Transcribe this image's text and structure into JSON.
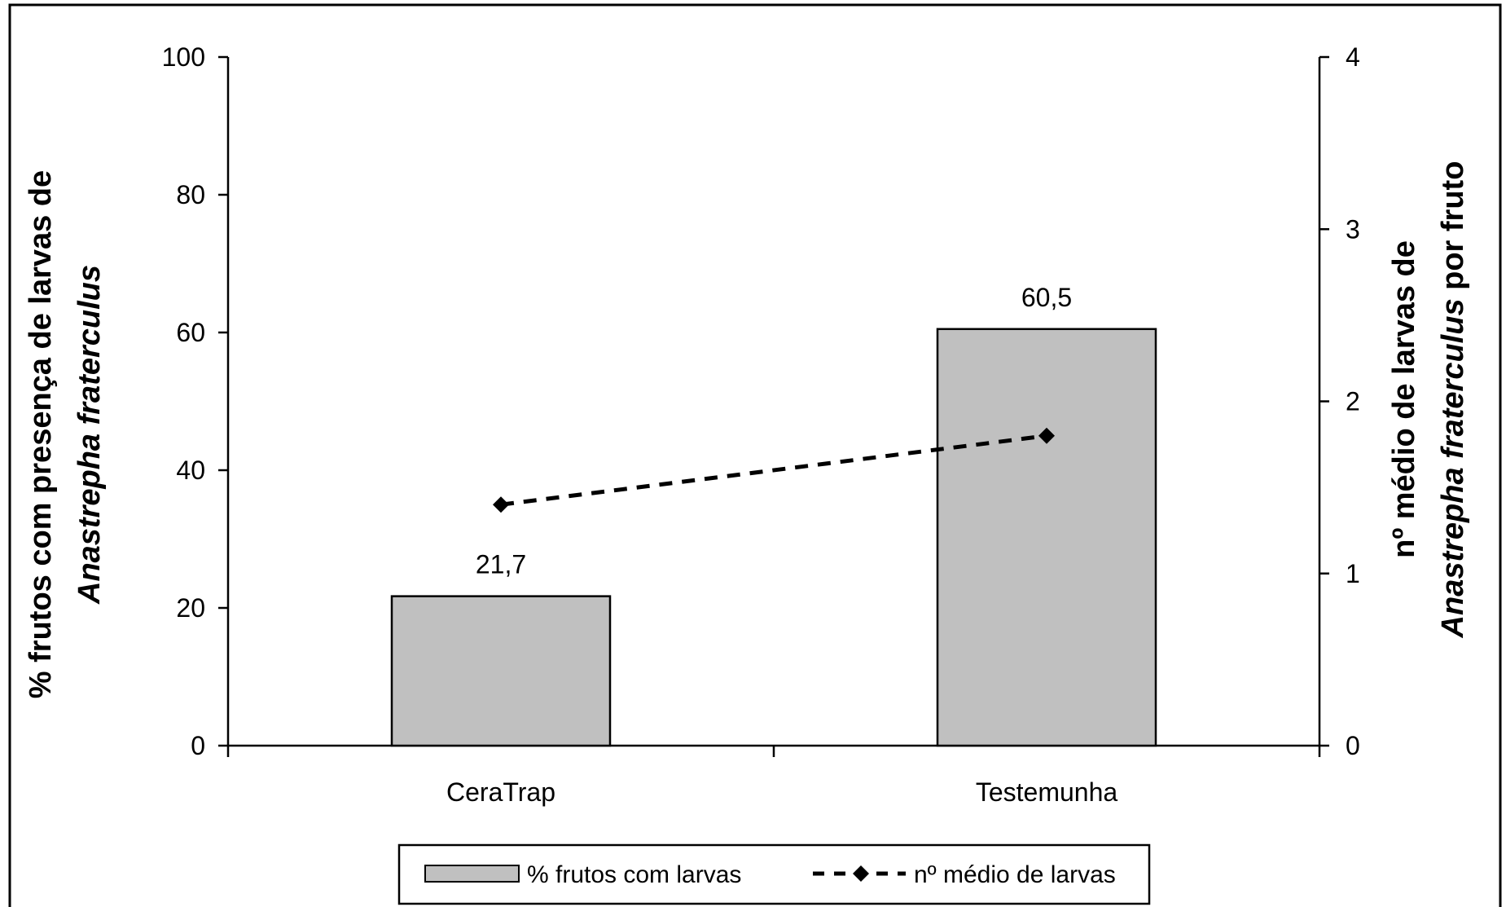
{
  "chart_data": {
    "type": "bar",
    "categories": [
      "CeraTrap",
      "Testemunha"
    ],
    "series": [
      {
        "name": "% frutos com larvas",
        "type": "bar",
        "axis": "left",
        "values": [
          21.7,
          60.5
        ],
        "value_labels": [
          "21,7",
          "60,5"
        ],
        "color": "#c0c0c0"
      },
      {
        "name": "nº médio de larvas",
        "type": "line",
        "axis": "right",
        "values": [
          1.4,
          1.8
        ],
        "color": "#000000",
        "line_style": "dashed",
        "marker": "diamond"
      }
    ],
    "y_left": {
      "title_parts": [
        {
          "text": "% frutos com presença de larvas de",
          "italic": false
        },
        {
          "text": "Anastrepha fraterculus",
          "italic": true
        }
      ],
      "ylim": [
        0,
        100
      ],
      "ticks": [
        "0",
        "20",
        "40",
        "60",
        "80",
        "100"
      ]
    },
    "y_right": {
      "title_line1": "nº médio de larvas de",
      "title_line2_italic": "Anastrepha fraterculus",
      "title_line2_rest": " por fruto",
      "ylim": [
        0,
        4
      ],
      "ticks": [
        "0",
        "1",
        "2",
        "3",
        "4"
      ]
    },
    "legend": {
      "placement": "bottom-center",
      "entries": [
        "% frutos com larvas",
        "nº médio de larvas"
      ]
    },
    "grid": false
  }
}
